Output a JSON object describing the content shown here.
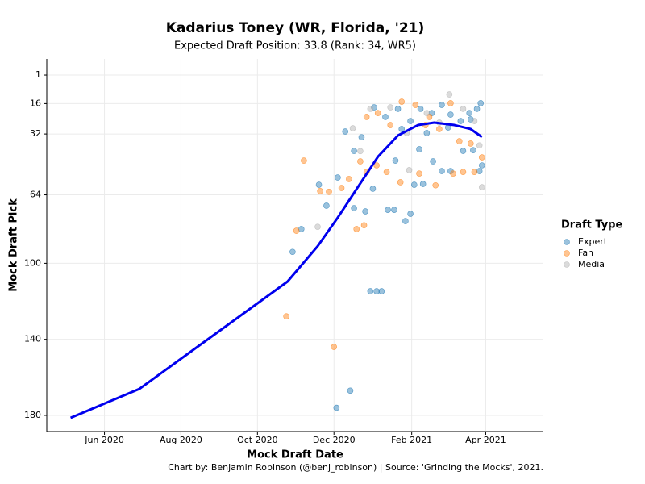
{
  "chart_data": {
    "type": "scatter",
    "title": "Kadarius Toney (WR, Florida, '21)",
    "subtitle": "Expected Draft Position: 33.8 (Rank: 34, WR5)",
    "x_label": "Mock Draft Date",
    "y_label": "Mock Draft Pick",
    "caption": "Chart by: Benjamin Robinson (@benj_robinson) | Source: 'Grinding the Mocks', 2021.",
    "legend_title": "Draft Type",
    "legend": "right",
    "grid": true,
    "y_reversed": true,
    "xlim": [
      "2020-04-16",
      "2021-05-17"
    ],
    "xticks": [
      {
        "value": "2020-06-01",
        "label": "Jun 2020"
      },
      {
        "value": "2020-08-01",
        "label": "Aug 2020"
      },
      {
        "value": "2020-10-01",
        "label": "Oct 2020"
      },
      {
        "value": "2020-12-01",
        "label": "Dec 2020"
      },
      {
        "value": "2021-02-01",
        "label": "Feb 2021"
      },
      {
        "value": "2021-04-01",
        "label": "Apr 2021"
      }
    ],
    "ylim": [
      -7.5,
      188.5
    ],
    "yticks": [
      1,
      16,
      32,
      64,
      100,
      140,
      180
    ],
    "series": [
      {
        "name": "Expert",
        "color": "#1f77b4",
        "x": [
          "2020-12-14",
          "2020-12-03",
          "2020-12-30",
          "2021-01-04",
          "2021-01-08",
          "2020-10-29",
          "2020-11-05",
          "2020-11-19",
          "2020-11-25",
          "2020-12-04",
          "2020-12-10",
          "2020-12-17",
          "2020-12-17",
          "2020-12-26",
          "2021-01-01",
          "2021-01-13",
          "2021-01-18",
          "2021-01-19",
          "2021-01-27",
          "2021-01-31",
          "2021-02-03",
          "2021-02-10",
          "2021-02-18",
          "2021-02-25",
          "2021-03-04",
          "2021-03-14",
          "2021-03-22",
          "2021-03-27",
          "2021-03-29",
          "2021-01-02",
          "2021-01-21",
          "2021-01-31",
          "2021-02-08",
          "2021-02-17",
          "2021-02-25",
          "2021-03-04",
          "2021-03-12",
          "2021-03-19",
          "2021-03-25",
          "2021-03-28",
          "2021-01-24",
          "2021-02-13",
          "2021-03-02",
          "2021-03-20",
          "2021-01-11",
          "2020-12-23",
          "2021-02-07"
        ],
        "values": [
          167,
          176,
          114.7,
          114.7,
          114.7,
          94,
          82,
          58.7,
          69.7,
          54.9,
          30.7,
          71,
          40.9,
          72.7,
          60.8,
          71.9,
          71.9,
          46,
          77.8,
          74,
          58.7,
          58.3,
          46.4,
          51.5,
          51.5,
          40.9,
          40.5,
          51.5,
          48.5,
          18,
          18.8,
          25.2,
          18.8,
          21,
          16.7,
          21.8,
          25.2,
          21,
          18.8,
          15.8,
          29.4,
          31.5,
          28.6,
          24.3,
          23,
          33.7,
          40
        ]
      },
      {
        "name": "Fan",
        "color": "#ff7f0e",
        "x": [
          "2020-11-07",
          "2020-10-24",
          "2020-12-01",
          "2020-11-01",
          "2020-11-20",
          "2020-11-27",
          "2020-12-13",
          "2020-12-07",
          "2020-12-19",
          "2020-12-25",
          "2020-12-22",
          "2020-12-27",
          "2021-01-12",
          "2021-01-04",
          "2021-01-23",
          "2021-02-07",
          "2021-02-20",
          "2021-03-06",
          "2021-03-14",
          "2021-03-23",
          "2020-12-27",
          "2021-01-05",
          "2021-01-15",
          "2021-01-24",
          "2021-02-04",
          "2021-02-12",
          "2021-02-23",
          "2021-03-11",
          "2021-03-20",
          "2021-03-29",
          "2021-03-04",
          "2021-02-15"
        ],
        "values": [
          46,
          127.9,
          144,
          82.9,
          62,
          62.4,
          55.7,
          60.4,
          82,
          80,
          46.4,
          52,
          52,
          48.5,
          57.4,
          52.8,
          59,
          52.8,
          52,
          52,
          23,
          21,
          27.3,
          15,
          16.7,
          27.3,
          29.4,
          35.8,
          37,
          44.3,
          15.8,
          23
        ]
      },
      {
        "name": "Media",
        "color": "#b0b0b0",
        "x": [
          "2021-03-03",
          "2021-03-29",
          "2020-12-16",
          "2020-12-22",
          "2020-11-18",
          "2020-12-30",
          "2021-01-15",
          "2021-01-30",
          "2021-02-13",
          "2021-03-14",
          "2021-03-23",
          "2021-02-23",
          "2021-03-27",
          "2021-01-28"
        ],
        "values": [
          11.2,
          60,
          29,
          41,
          80.8,
          18.8,
          18,
          51,
          21,
          18.8,
          25.2,
          26,
          38,
          31.5
        ]
      }
    ],
    "trend": {
      "color": "#0000ee",
      "x": [
        "2020-05-05",
        "2020-06-29",
        "2020-10-25",
        "2020-11-18",
        "2020-12-04",
        "2020-12-20",
        "2021-01-05",
        "2021-01-21",
        "2021-02-06",
        "2021-02-19",
        "2021-03-07",
        "2021-03-20",
        "2021-03-29"
      ],
      "values": [
        181.3,
        166,
        109.6,
        91,
        76,
        60,
        44,
        32.8,
        27.3,
        26,
        27.3,
        29.4,
        33.6
      ]
    }
  }
}
